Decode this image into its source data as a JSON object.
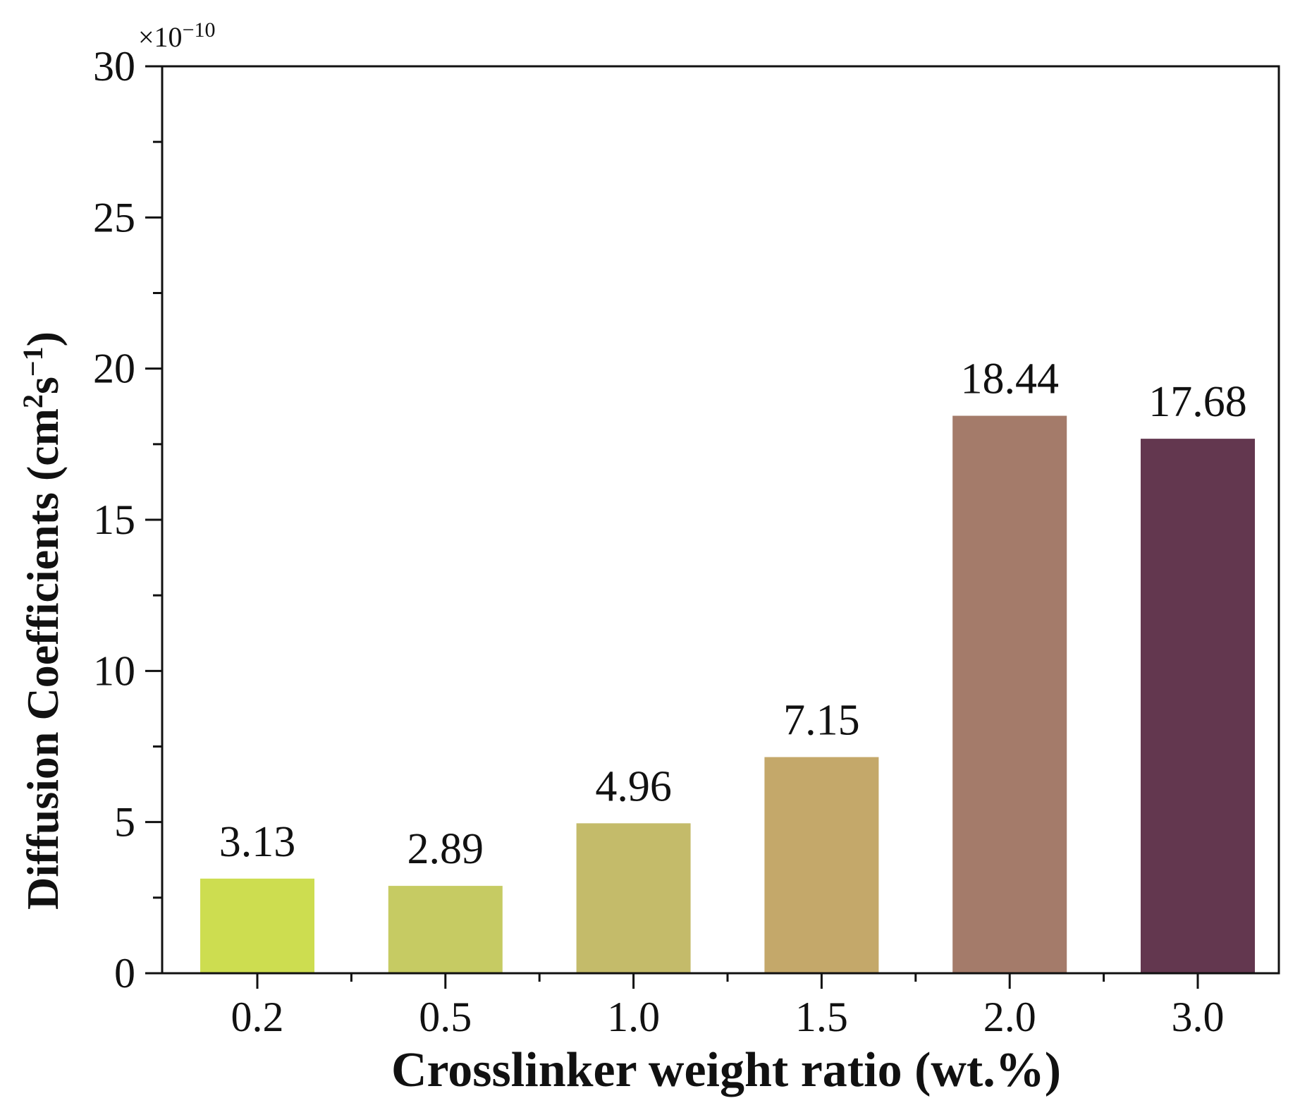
{
  "chart_data": {
    "type": "bar",
    "title": "",
    "xlabel": "Crosslinker weight ratio (wt.%)",
    "ylabel_main": "Diffusion Coefficients (cm",
    "ylabel_sup1": "2",
    "ylabel_mid": "s",
    "ylabel_sup2": "−1",
    "ylabel_end": ")",
    "y_multiplier_prefix": "×10",
    "y_multiplier_exp": "−10",
    "categories": [
      "0.2",
      "0.5",
      "1.0",
      "1.5",
      "2.0",
      "3.0"
    ],
    "values": [
      3.13,
      2.89,
      4.96,
      7.15,
      18.44,
      17.68
    ],
    "value_labels": [
      "3.13",
      "2.89",
      "4.96",
      "7.15",
      "18.44",
      "17.68"
    ],
    "colors": [
      "#cddd50",
      "#c6cb63",
      "#c4bb6a",
      "#c4a86a",
      "#a47b6a",
      "#63374f"
    ],
    "ylim": [
      0,
      30
    ],
    "yticks": [
      0,
      5,
      10,
      15,
      20,
      25,
      30
    ],
    "ytick_labels": [
      "0",
      "5",
      "10",
      "15",
      "20",
      "25",
      "30"
    ],
    "grid": false,
    "legend": "none"
  }
}
